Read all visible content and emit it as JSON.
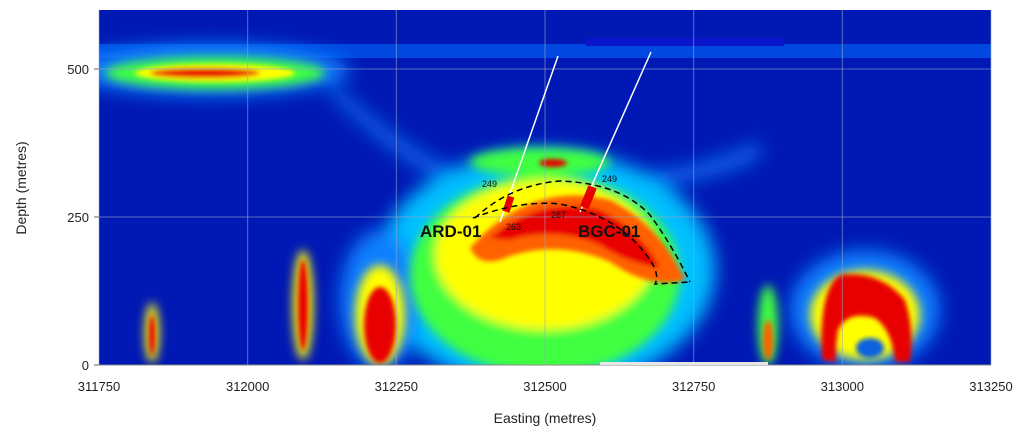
{
  "chart_data": {
    "type": "heatmap",
    "title": "",
    "xlabel": "Easting (metres)",
    "ylabel": "Depth (metres)",
    "xlim": [
      311750,
      313250
    ],
    "ylim": [
      0,
      600
    ],
    "x_ticks": [
      "311750",
      "312000",
      "312250",
      "312500",
      "312750",
      "313000",
      "313250"
    ],
    "y_ticks": [
      "0",
      "250",
      "500"
    ],
    "grid": true,
    "colormap": [
      "#0018b4",
      "#0060ff",
      "#00d0ff",
      "#40ff40",
      "#ffff00",
      "#ff6000",
      "#e80000"
    ],
    "drill_holes": [
      {
        "name": "ARD-01",
        "collar": [
          312565,
          527
        ],
        "end": [
          312418,
          250
        ],
        "intercept_depths": [
          "249",
          "263"
        ]
      },
      {
        "name": "BGC-01",
        "collar": [
          312720,
          527
        ],
        "end": [
          312570,
          265
        ],
        "intercept_depths": [
          "249",
          "287"
        ]
      }
    ],
    "annotations": [
      "249",
      "263",
      "287",
      "249"
    ]
  }
}
